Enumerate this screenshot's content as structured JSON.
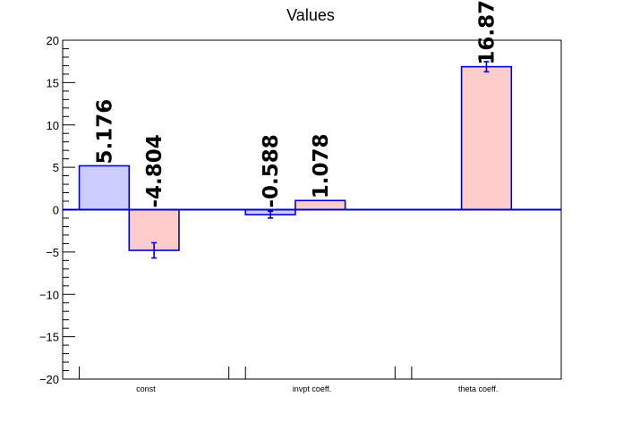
{
  "chart_data": {
    "type": "bar",
    "title": "Values",
    "categories": [
      "const",
      "invpt coeff.",
      "theta coeff."
    ],
    "ylim": [
      -20,
      20
    ],
    "yticks": [
      20,
      15,
      10,
      5,
      0,
      -5,
      -10,
      -15,
      -20
    ],
    "ytick_labels": [
      "20",
      "15",
      "10",
      "5",
      "0",
      "−5",
      "−10",
      "−15",
      "−20"
    ],
    "series": [
      {
        "values": [
          5.176,
          -0.588,
          null
        ],
        "labels": [
          "5.176",
          "-0.588",
          ""
        ],
        "errors": [
          0,
          0.4,
          0
        ]
      },
      {
        "values": [
          -4.804,
          1.078,
          16.872
        ],
        "labels": [
          "-4.804",
          "1.078",
          "16.872"
        ],
        "errors": [
          0.9,
          0,
          0.6
        ]
      }
    ],
    "colors": {
      "series_fill": [
        "#ccccff",
        "#ffcccc"
      ],
      "bar_edge": "#0000cc",
      "axis": "#000000",
      "zero_line": "#0000cc"
    },
    "grid": false,
    "legend": "none"
  }
}
